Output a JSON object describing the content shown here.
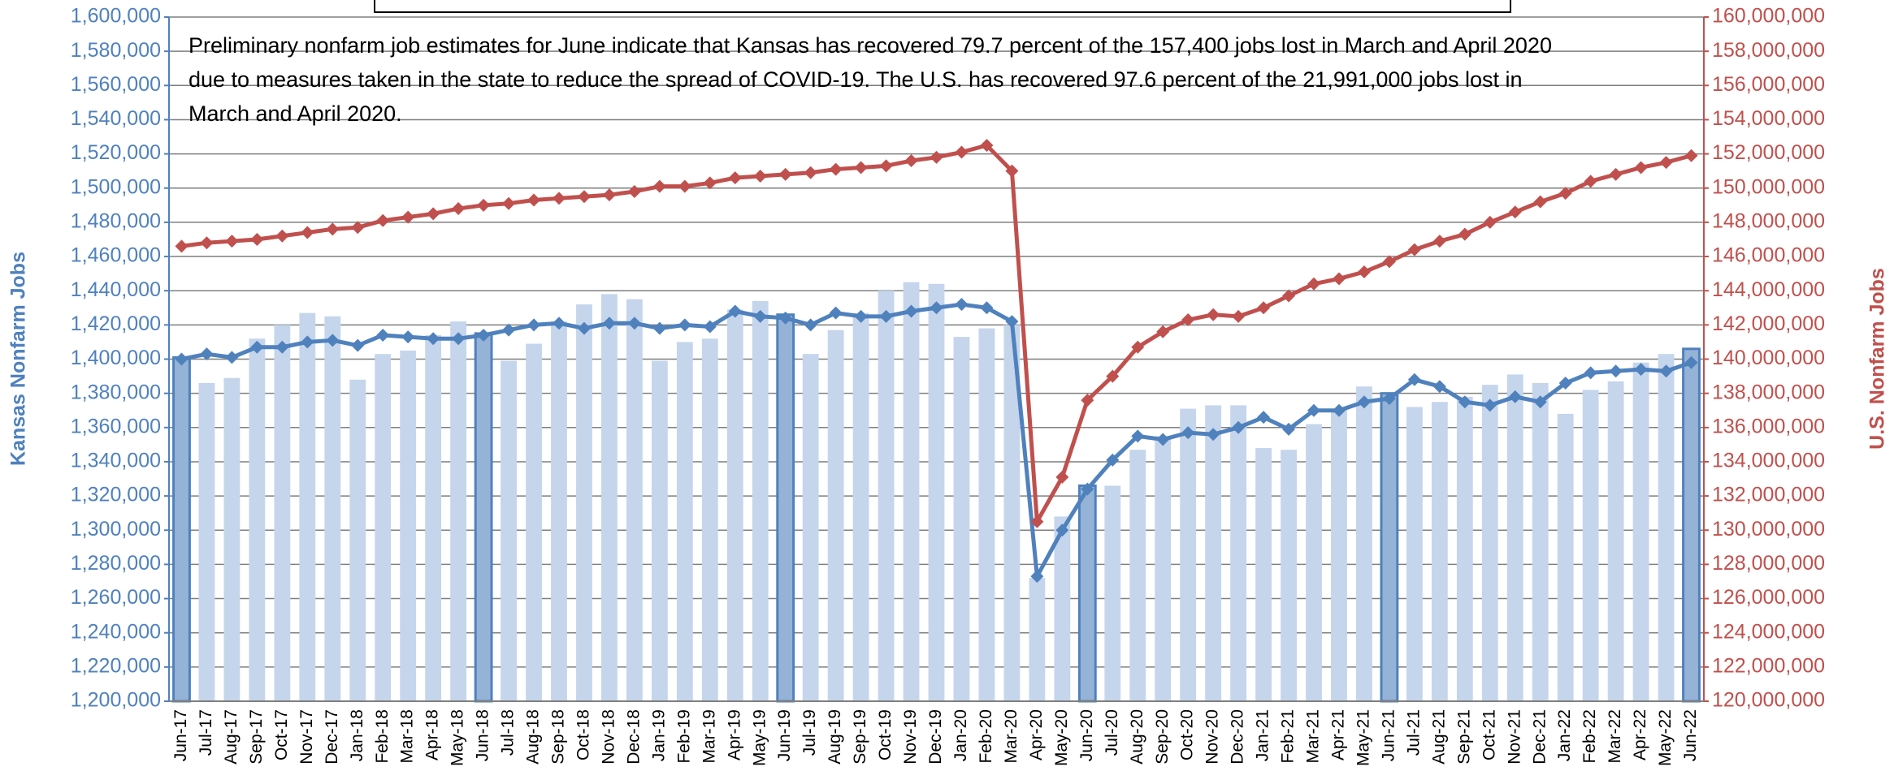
{
  "chart_data": {
    "type": "bar_line_dual",
    "annotation_lines": [
      "Preliminary nonfarm job estimates for June indicate that Kansas has recovered 79.7 percent of the 157,400 jobs lost in March and April 2020",
      "due to measures taken in the state to reduce the spread of COVID-19. The U.S. has recovered 97.6 percent of the 21,991,000 jobs lost in",
      "March and April 2020."
    ],
    "ylabel": "Kansas Nonfarm Jobs",
    "y2label": "U.S. Nonfarm Jobs",
    "categories": [
      "Jun-17",
      "Jul-17",
      "Aug-17",
      "Sep-17",
      "Oct-17",
      "Nov-17",
      "Dec-17",
      "Jan-18",
      "Feb-18",
      "Mar-18",
      "Apr-18",
      "May-18",
      "Jun-18",
      "Jul-18",
      "Aug-18",
      "Sep-18",
      "Oct-18",
      "Nov-18",
      "Dec-18",
      "Jan-19",
      "Feb-19",
      "Mar-19",
      "Apr-19",
      "May-19",
      "Jun-19",
      "Jul-19",
      "Aug-19",
      "Sep-19",
      "Oct-19",
      "Nov-19",
      "Dec-19",
      "Jan-20",
      "Feb-20",
      "Mar-20",
      "Apr-20",
      "May-20",
      "Jun-20",
      "Jul-20",
      "Aug-20",
      "Sep-20",
      "Oct-20",
      "Nov-20",
      "Dec-20",
      "Jan-21",
      "Feb-21",
      "Mar-21",
      "Apr-21",
      "May-21",
      "Jun-21",
      "Jul-21",
      "Aug-21",
      "Sep-21",
      "Oct-21",
      "Nov-21",
      "Dec-21",
      "Jan-22",
      "Feb-22",
      "Mar-22",
      "Apr-22",
      "May-22",
      "Jun-22"
    ],
    "series": [
      {
        "type": "bar",
        "color": "#c5d5ec",
        "highlight_color": "#95b3d7",
        "highlight_stroke": "#4f81bd",
        "highlight_indices": [
          0,
          12,
          24,
          36,
          48,
          60
        ],
        "values": [
          1401000,
          1386000,
          1389000,
          1412000,
          1420000,
          1427000,
          1425000,
          1388000,
          1403000,
          1405000,
          1414000,
          1422000,
          1415000,
          1399000,
          1409000,
          1422000,
          1432000,
          1438000,
          1435000,
          1399000,
          1410000,
          1412000,
          1429000,
          1434000,
          1426000,
          1403000,
          1417000,
          1427000,
          1440000,
          1445000,
          1444000,
          1413000,
          1418000,
          1420000,
          1272000,
          1308000,
          1326000,
          1326000,
          1347000,
          1355000,
          1371000,
          1373000,
          1373000,
          1348000,
          1347000,
          1362000,
          1371000,
          1384000,
          1380000,
          1372000,
          1375000,
          1378000,
          1385000,
          1391000,
          1386000,
          1368000,
          1382000,
          1387000,
          1398000,
          1403000,
          1406000
        ]
      },
      {
        "type": "line",
        "color": "#4f81bd",
        "values": [
          1400000,
          1403000,
          1401000,
          1407000,
          1407000,
          1410000,
          1411000,
          1408000,
          1414000,
          1413000,
          1412000,
          1412000,
          1414000,
          1417000,
          1420000,
          1421000,
          1418000,
          1421000,
          1421000,
          1418000,
          1420000,
          1419000,
          1428000,
          1425000,
          1424000,
          1420000,
          1427000,
          1425000,
          1425000,
          1428000,
          1430000,
          1432000,
          1430000,
          1422000,
          1273000,
          1300000,
          1324000,
          1341000,
          1355000,
          1353000,
          1357000,
          1356000,
          1360000,
          1366000,
          1359000,
          1370000,
          1370000,
          1375000,
          1377000,
          1388000,
          1384000,
          1375000,
          1373000,
          1378000,
          1375000,
          1386000,
          1392000,
          1393000,
          1394000,
          1393000,
          1398000
        ]
      },
      {
        "type": "line",
        "axis": "y2",
        "color": "#c0504d",
        "values": [
          146600000,
          146800000,
          146900000,
          147000000,
          147200000,
          147400000,
          147600000,
          147700000,
          148100000,
          148300000,
          148500000,
          148800000,
          149000000,
          149100000,
          149300000,
          149400000,
          149500000,
          149600000,
          149800000,
          150100000,
          150100000,
          150300000,
          150600000,
          150700000,
          150800000,
          150900000,
          151100000,
          151200000,
          151300000,
          151600000,
          151800000,
          152100000,
          152500000,
          151000000,
          130500000,
          133100000,
          137600000,
          139000000,
          140700000,
          141600000,
          142300000,
          142600000,
          142500000,
          143000000,
          143700000,
          144400000,
          144700000,
          145100000,
          145700000,
          146400000,
          146900000,
          147300000,
          148000000,
          148600000,
          149200000,
          149700000,
          150400000,
          150800000,
          151200000,
          151500000,
          151900000
        ]
      }
    ],
    "ylim": [
      1200000,
      1600000
    ],
    "yticks": [
      {
        "value": 1200000,
        "label": "1,200,000"
      },
      {
        "value": 1220000,
        "label": "1,220,000"
      },
      {
        "value": 1240000,
        "label": "1,240,000"
      },
      {
        "value": 1260000,
        "label": "1,260,000"
      },
      {
        "value": 1280000,
        "label": "1,280,000"
      },
      {
        "value": 1300000,
        "label": "1,300,000"
      },
      {
        "value": 1320000,
        "label": "1,320,000"
      },
      {
        "value": 1340000,
        "label": "1,340,000"
      },
      {
        "value": 1360000,
        "label": "1,360,000"
      },
      {
        "value": 1380000,
        "label": "1,380,000"
      },
      {
        "value": 1400000,
        "label": "1,400,000"
      },
      {
        "value": 1420000,
        "label": "1,420,000"
      },
      {
        "value": 1440000,
        "label": "1,440,000"
      },
      {
        "value": 1460000,
        "label": "1,460,000"
      },
      {
        "value": 1480000,
        "label": "1,480,000"
      },
      {
        "value": 1500000,
        "label": "1,500,000"
      },
      {
        "value": 1520000,
        "label": "1,520,000"
      },
      {
        "value": 1540000,
        "label": "1,540,000"
      },
      {
        "value": 1560000,
        "label": "1,560,000"
      },
      {
        "value": 1580000,
        "label": "1,580,000"
      },
      {
        "value": 1600000,
        "label": "1,600,000"
      }
    ],
    "y2lim": [
      120000000,
      160000000
    ],
    "y2ticks": [
      {
        "value": 120000000,
        "label": "120,000,000"
      },
      {
        "value": 122000000,
        "label": "122,000,000"
      },
      {
        "value": 124000000,
        "label": "124,000,000"
      },
      {
        "value": 126000000,
        "label": "126,000,000"
      },
      {
        "value": 128000000,
        "label": "128,000,000"
      },
      {
        "value": 130000000,
        "label": "130,000,000"
      },
      {
        "value": 132000000,
        "label": "132,000,000"
      },
      {
        "value": 134000000,
        "label": "134,000,000"
      },
      {
        "value": 136000000,
        "label": "136,000,000"
      },
      {
        "value": 138000000,
        "label": "138,000,000"
      },
      {
        "value": 140000000,
        "label": "140,000,000"
      },
      {
        "value": 142000000,
        "label": "142,000,000"
      },
      {
        "value": 144000000,
        "label": "144,000,000"
      },
      {
        "value": 146000000,
        "label": "146,000,000"
      },
      {
        "value": 148000000,
        "label": "148,000,000"
      },
      {
        "value": 150000000,
        "label": "150,000,000"
      },
      {
        "value": 152000000,
        "label": "152,000,000"
      },
      {
        "value": 154000000,
        "label": "154,000,000"
      },
      {
        "value": 156000000,
        "label": "156,000,000"
      },
      {
        "value": 158000000,
        "label": "158,000,000"
      },
      {
        "value": 160000000,
        "label": "160,000,000"
      }
    ],
    "grid": true,
    "grid_color": "#7f7f7f"
  }
}
